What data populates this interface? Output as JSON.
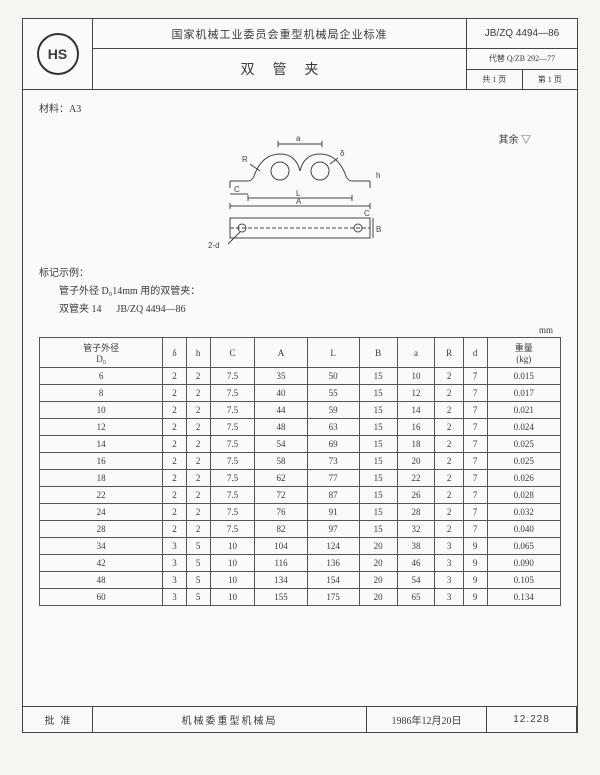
{
  "header": {
    "logo_text": "HS",
    "org": "国家机械工业委员会重型机械局企业标准",
    "std_no": "JB/ZQ 4494—86",
    "title": "双管夹",
    "replaces": "代替 Q/ZB 292—77",
    "page_total": "共 1 页",
    "page_current": "第 1 页"
  },
  "material_label": "材料：A3",
  "note_right": "其余 ▽",
  "marking": {
    "heading": "标记示例：",
    "line1": "管子外径 D₀14mm 用的双管夹：",
    "line2_a": "双管夹 14",
    "line2_b": "JB/ZQ 4494—86"
  },
  "unit": "mm",
  "table": {
    "columns": [
      "管子外径\nD₀",
      "δ",
      "h",
      "C",
      "A",
      "L",
      "B",
      "a",
      "R",
      "d",
      "重量\n(kg)"
    ],
    "rows": [
      [
        "6",
        "2",
        "2",
        "7.5",
        "35",
        "50",
        "15",
        "10",
        "2",
        "7",
        "0.015"
      ],
      [
        "8",
        "2",
        "2",
        "7.5",
        "40",
        "55",
        "15",
        "12",
        "2",
        "7",
        "0.017"
      ],
      [
        "10",
        "2",
        "2",
        "7.5",
        "44",
        "59",
        "15",
        "14",
        "2",
        "7",
        "0.021"
      ],
      [
        "12",
        "2",
        "2",
        "7.5",
        "48",
        "63",
        "15",
        "16",
        "2",
        "7",
        "0.024"
      ],
      [
        "14",
        "2",
        "2",
        "7.5",
        "54",
        "69",
        "15",
        "18",
        "2",
        "7",
        "0.025"
      ],
      [
        "16",
        "2",
        "2",
        "7.5",
        "58",
        "73",
        "15",
        "20",
        "2",
        "7",
        "0.025"
      ],
      [
        "18",
        "2",
        "2",
        "7.5",
        "62",
        "77",
        "15",
        "22",
        "2",
        "7",
        "0.026"
      ],
      [
        "22",
        "2",
        "2",
        "7.5",
        "72",
        "87",
        "15",
        "26",
        "2",
        "7",
        "0.028"
      ],
      [
        "24",
        "2",
        "2",
        "7.5",
        "76",
        "91",
        "15",
        "28",
        "2",
        "7",
        "0.032"
      ],
      [
        "28",
        "2",
        "2",
        "7.5",
        "82",
        "97",
        "15",
        "32",
        "2",
        "7",
        "0.040"
      ],
      [
        "34",
        "3",
        "5",
        "10",
        "104",
        "124",
        "20",
        "38",
        "3",
        "9",
        "0.065"
      ],
      [
        "42",
        "3",
        "5",
        "10",
        "116",
        "136",
        "20",
        "46",
        "3",
        "9",
        "0.090"
      ],
      [
        "48",
        "3",
        "5",
        "10",
        "134",
        "154",
        "20",
        "54",
        "3",
        "9",
        "0.105"
      ],
      [
        "60",
        "3",
        "5",
        "10",
        "155",
        "175",
        "20",
        "65",
        "3",
        "9",
        "0.134"
      ]
    ]
  },
  "footer": {
    "approve_label": "批准",
    "issuer": "机械委重型机械局",
    "date": "1986年12月20日",
    "code": "12.228"
  },
  "diagram_labels": {
    "R": "R",
    "a": "a",
    "delta": "δ",
    "h": "h",
    "c1": "C",
    "L": "L",
    "A": "A",
    "B": "B",
    "c2": "C",
    "d": "2-d"
  }
}
